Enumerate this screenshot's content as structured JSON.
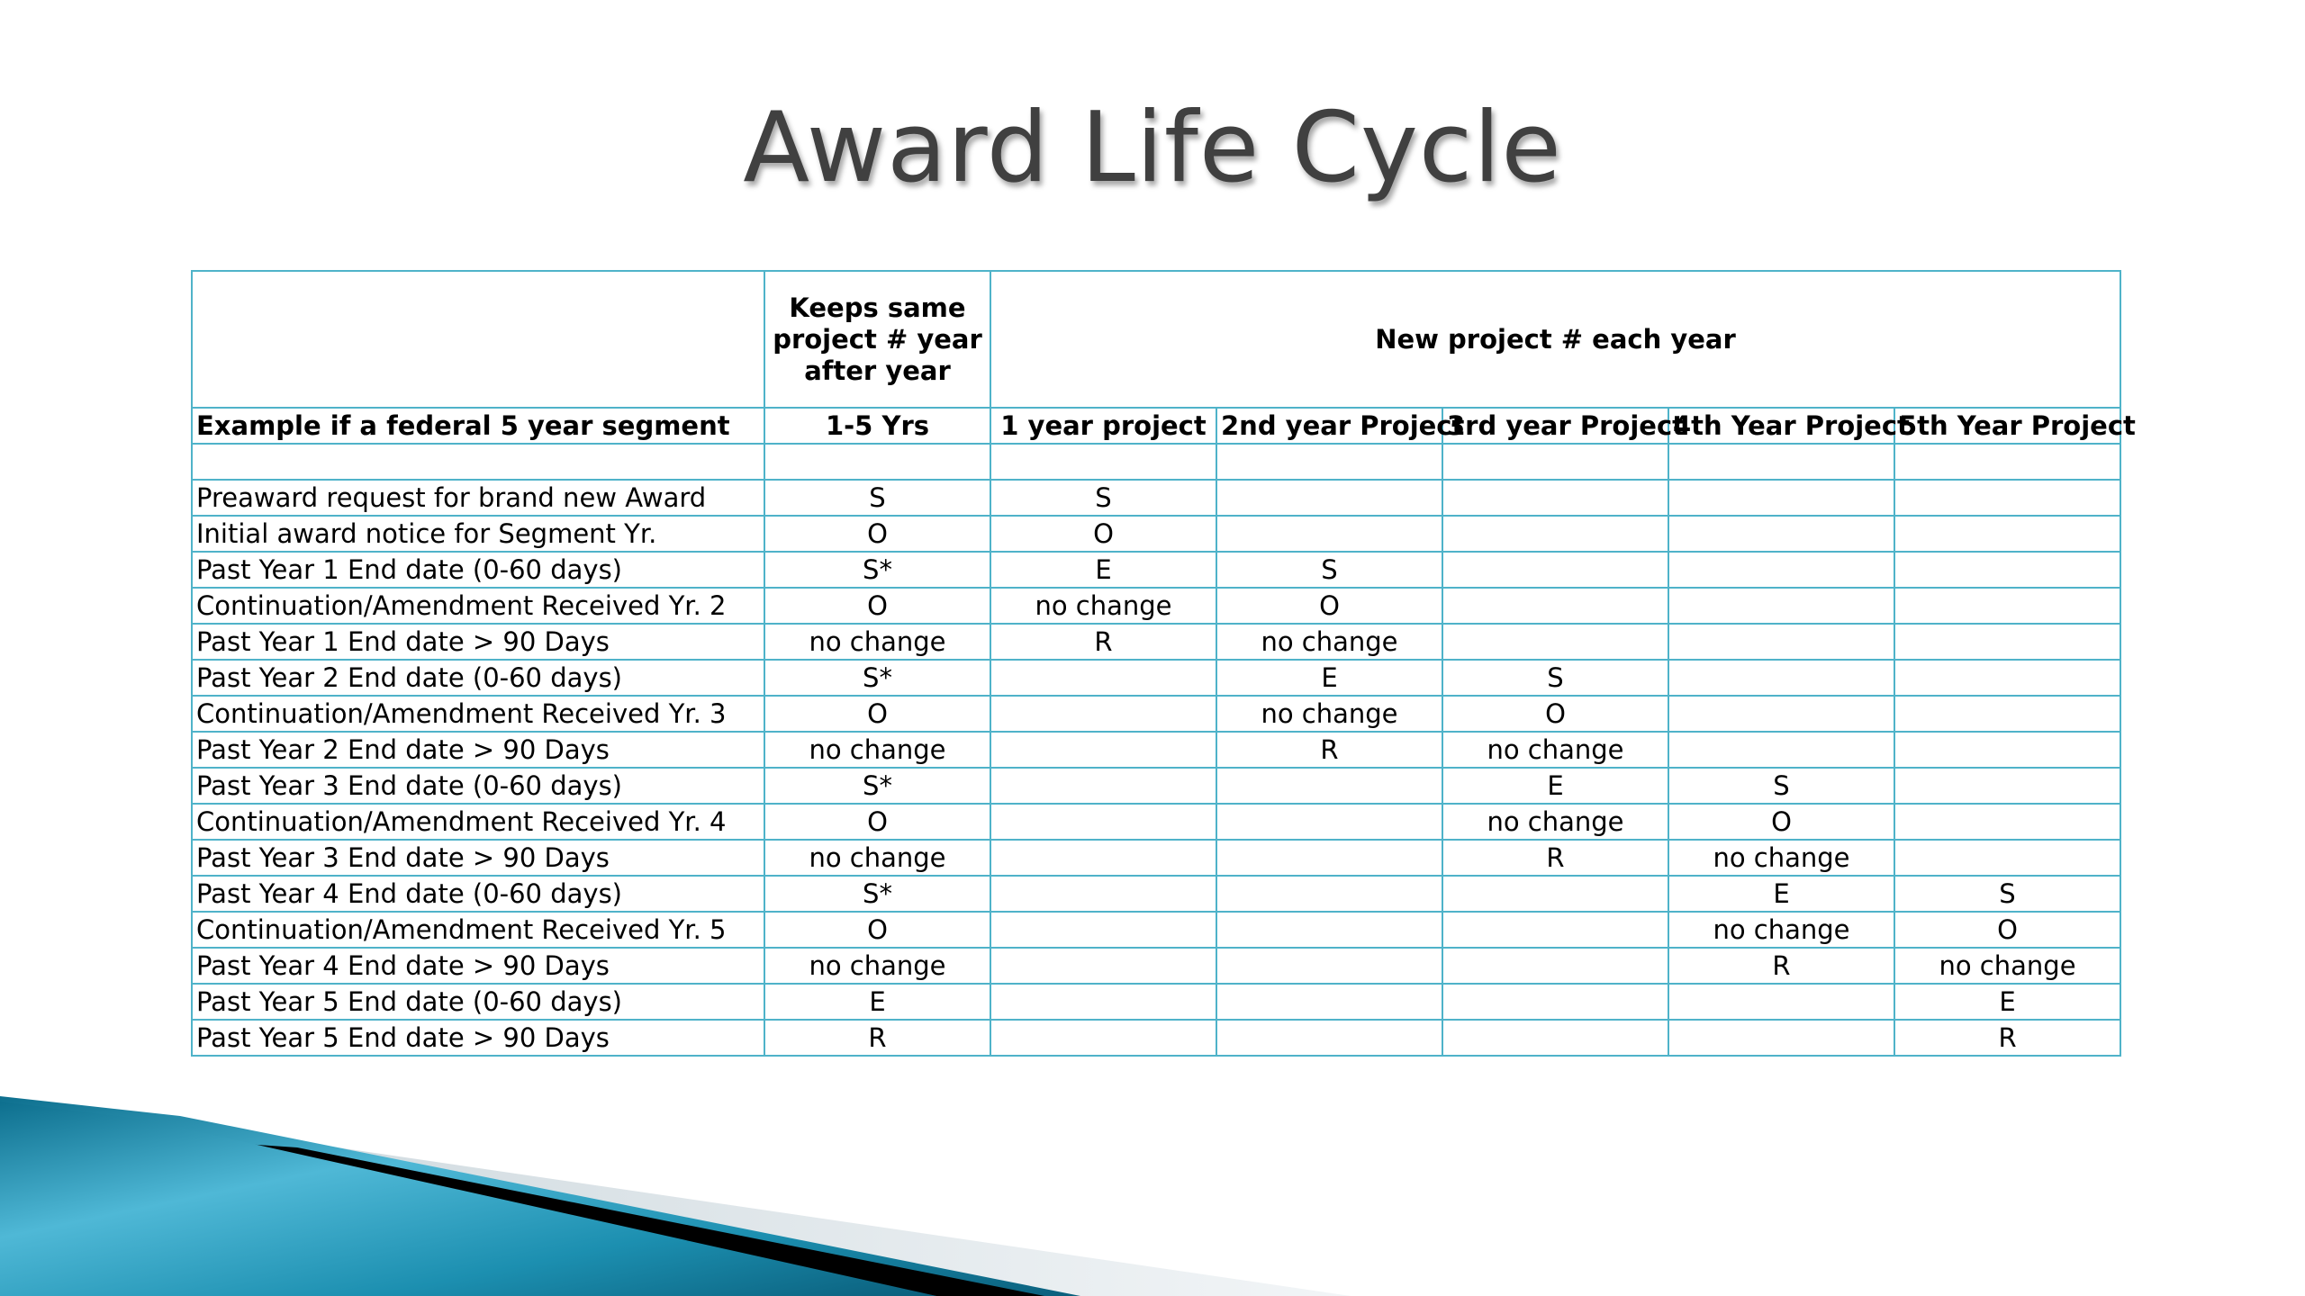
{
  "slide": {
    "title": "Award Life Cycle"
  },
  "table": {
    "header_top": {
      "label": "",
      "keeps_same": "Keeps same project # year after year",
      "new_project": "New project # each year"
    },
    "header_sub": [
      "Example if a federal 5 year segment",
      "1-5 Yrs",
      "1 year project",
      "2nd year Project",
      "3rd year Project",
      "4th Year Project",
      "5th Year Project"
    ],
    "rows": [
      [
        "",
        "",
        "",
        "",
        "",
        "",
        ""
      ],
      [
        "Preaward request for brand new Award",
        "S",
        "S",
        "",
        "",
        "",
        ""
      ],
      [
        "Initial award notice for Segment Yr.",
        "O",
        "O",
        "",
        "",
        "",
        ""
      ],
      [
        "Past Year 1 End date (0-60 days)",
        "S*",
        "E",
        "S",
        "",
        "",
        ""
      ],
      [
        "Continuation/Amendment Received Yr. 2",
        "O",
        "no change",
        "O",
        "",
        "",
        ""
      ],
      [
        "Past Year 1 End date > 90 Days",
        "no change",
        "R",
        "no change",
        "",
        "",
        ""
      ],
      [
        "Past Year 2 End date (0-60 days)",
        "S*",
        "",
        "E",
        "S",
        "",
        ""
      ],
      [
        "Continuation/Amendment Received Yr. 3",
        "O",
        "",
        "no change",
        "O",
        "",
        ""
      ],
      [
        "Past Year 2 End date > 90 Days",
        "no change",
        "",
        "R",
        "no change",
        "",
        ""
      ],
      [
        "Past Year 3 End date (0-60 days)",
        "S*",
        "",
        "",
        "E",
        "S",
        ""
      ],
      [
        "Continuation/Amendment Received Yr. 4",
        "O",
        "",
        "",
        "no change",
        "O",
        ""
      ],
      [
        "Past Year 3 End date > 90 Days",
        "no change",
        "",
        "",
        "R",
        "no change",
        ""
      ],
      [
        "Past Year 4 End date (0-60 days)",
        "S*",
        "",
        "",
        "",
        "E",
        "S"
      ],
      [
        "Continuation/Amendment Received Yr. 5",
        "O",
        "",
        "",
        "",
        "no change",
        "O"
      ],
      [
        "Past Year 4 End date > 90 Days",
        "no change",
        "",
        "",
        "",
        "R",
        "no change"
      ],
      [
        "Past Year 5 End date (0-60 days)",
        "E",
        "",
        "",
        "",
        "",
        "E"
      ],
      [
        "Past Year 5 End date > 90 Days",
        "R",
        "",
        "",
        "",
        "",
        "R"
      ]
    ]
  },
  "colors": {
    "grid_line": "#4fb3c9",
    "title_text": "#404040",
    "accent_teal": "#1a8fb0"
  }
}
